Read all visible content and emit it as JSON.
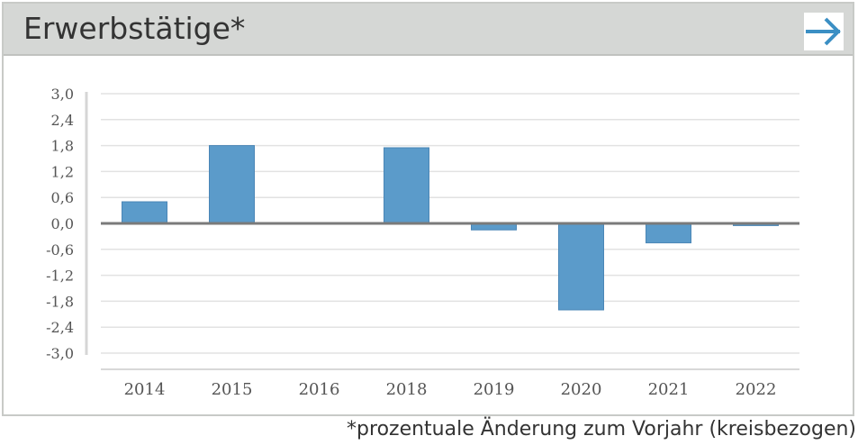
{
  "header": {
    "title": "Erwerbstätige*",
    "arrow_icon": "arrow-right-icon"
  },
  "footnote": "*prozentuale Änderung zum Vorjahr (kreisbezogen)",
  "colors": {
    "bar": "#5b9bca",
    "bar_edge": "#4a86b6",
    "zero_line": "#7a7a7a",
    "grid": "#e2e2e2",
    "arrow": "#3b8fc4",
    "header_bg": "#d5d7d5"
  },
  "chart_data": {
    "type": "bar",
    "categories": [
      "2014",
      "2015",
      "2016",
      "2018",
      "2019",
      "2020",
      "2021",
      "2022"
    ],
    "values": [
      0.5,
      1.8,
      0.0,
      1.75,
      -0.15,
      -2.0,
      -0.45,
      -0.05
    ],
    "yticks": [
      "3,0",
      "2,4",
      "1,8",
      "1,2",
      "0,6",
      "0,0",
      "-0,6",
      "-1,2",
      "-1,8",
      "-2,4",
      "-3,0"
    ],
    "ylim": [
      -3.0,
      3.0
    ],
    "grid": true,
    "legend": "none"
  }
}
